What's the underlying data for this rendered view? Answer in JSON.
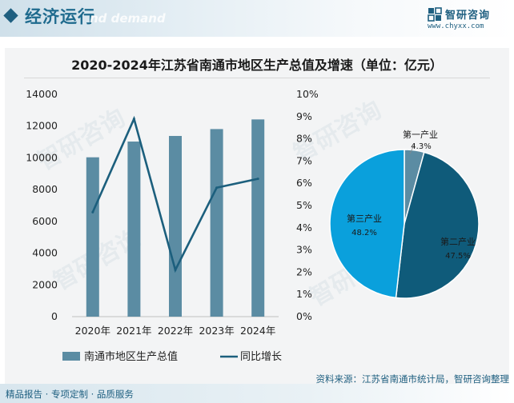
{
  "header": {
    "section_title": "经济运行",
    "ghost_text": "nd demand",
    "brand_name": "智研咨询",
    "brand_url": "www.chyxx.com"
  },
  "chart_data": [
    {
      "type": "bar+line",
      "title": "2020-2024年江苏省南通市地区生产总值及增速（单位：亿元）",
      "categories": [
        "2020年",
        "2021年",
        "2022年",
        "2023年",
        "2024年"
      ],
      "series": [
        {
          "name": "南通市地区生产总值",
          "type": "bar",
          "axis": "left",
          "color": "#5b8ca3",
          "values": [
            10036,
            11027,
            11380,
            11814,
            12421
          ]
        },
        {
          "name": "同比增长",
          "type": "line",
          "axis": "right",
          "color": "#1c5f7d",
          "values": [
            4.7,
            8.9,
            2.1,
            5.8,
            6.2
          ]
        }
      ],
      "y_left": {
        "ticks": [
          "0",
          "2000",
          "4000",
          "6000",
          "8000",
          "10000",
          "12000",
          "14000"
        ],
        "range": [
          0,
          14000
        ]
      },
      "y_right": {
        "ticks": [
          "0%",
          "1%",
          "2%",
          "3%",
          "4%",
          "5%",
          "6%",
          "7%",
          "8%",
          "9%",
          "10%"
        ],
        "range": [
          0,
          10
        ]
      },
      "legend_position": "bottom"
    },
    {
      "type": "pie",
      "slices": [
        {
          "label": "第一产业",
          "value_label": "4.3%",
          "value": 4.3,
          "color": "#5b8ca3"
        },
        {
          "label": "第二产业",
          "value_label": "47.5%",
          "value": 47.5,
          "color": "#0f5b7a"
        },
        {
          "label": "第三产业",
          "value_label": "48.2%",
          "value": 48.2,
          "color": "#0aa0dc"
        }
      ]
    }
  ],
  "source_text": "资料来源：江苏省南通市统计局，智研咨询整理",
  "footer_text": "精品报告 · 专项定制 · 品质服务",
  "watermark": "智研咨询"
}
